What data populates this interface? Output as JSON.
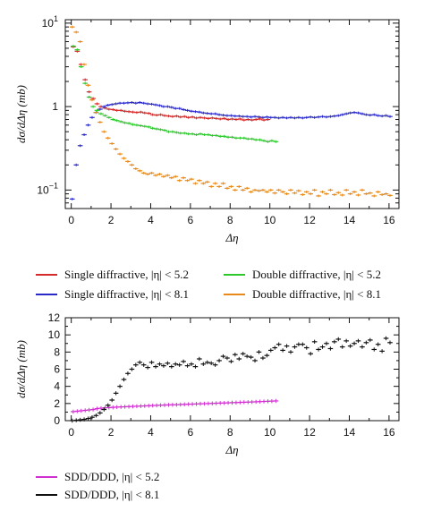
{
  "chart_data": [
    {
      "type": "scatter",
      "title": "",
      "xlabel": "Δη",
      "ylabel": "dσ/dΔη (mb)",
      "xlim": [
        -0.3,
        16.5
      ],
      "ylim": [
        0.06,
        11
      ],
      "y_scale": "log",
      "x_ticks": [
        0,
        2,
        4,
        6,
        8,
        10,
        12,
        14,
        16
      ],
      "y_ticks": [
        {
          "value": 0.1,
          "base": "10",
          "exp": "−1"
        },
        {
          "value": 1,
          "base": "1",
          "exp": ""
        },
        {
          "value": 10,
          "base": "10",
          "exp": "1"
        }
      ],
      "grid": false,
      "legend_position": "below",
      "series": [
        {
          "name": "Single diffractive, |η| < 5.2",
          "color": "#d42a2a",
          "x": [
            0.1,
            0.3,
            0.5,
            0.7,
            0.9,
            1.1,
            1.3,
            1.5,
            1.7,
            1.9,
            2.1,
            2.3,
            2.5,
            2.7,
            2.9,
            3.1,
            3.3,
            3.5,
            3.7,
            3.9,
            4.1,
            4.3,
            4.5,
            4.7,
            4.9,
            5.1,
            5.3,
            5.5,
            5.7,
            5.9,
            6.1,
            6.3,
            6.5,
            6.7,
            6.9,
            7.1,
            7.3,
            7.5,
            7.7,
            7.9,
            8.1,
            8.3,
            8.5,
            8.7,
            8.9,
            9.1,
            9.3,
            9.5,
            9.7,
            9.9
          ],
          "y": [
            5.2,
            4.6,
            3.2,
            2.1,
            1.5,
            1.25,
            1.08,
            1.0,
            0.96,
            0.93,
            0.92,
            0.9,
            0.9,
            0.88,
            0.87,
            0.86,
            0.85,
            0.86,
            0.84,
            0.83,
            0.8,
            0.79,
            0.8,
            0.78,
            0.77,
            0.76,
            0.77,
            0.75,
            0.76,
            0.74,
            0.75,
            0.73,
            0.74,
            0.73,
            0.72,
            0.73,
            0.72,
            0.71,
            0.72,
            0.7,
            0.71,
            0.7,
            0.71,
            0.69,
            0.7,
            0.69,
            0.7,
            0.71,
            0.69,
            0.7
          ]
        },
        {
          "name": "Single diffractive, |η| < 8.1",
          "color": "#2a2ac8",
          "x": [
            0.05,
            0.25,
            0.45,
            0.65,
            0.85,
            1.05,
            1.25,
            1.45,
            1.65,
            1.85,
            2.05,
            2.25,
            2.45,
            2.65,
            2.85,
            3.05,
            3.25,
            3.45,
            3.65,
            3.85,
            4.05,
            4.25,
            4.45,
            4.65,
            4.85,
            5.05,
            5.25,
            5.45,
            5.65,
            5.85,
            6.05,
            6.25,
            6.45,
            6.65,
            6.85,
            7.05,
            7.25,
            7.45,
            7.65,
            7.85,
            8.05,
            8.25,
            8.45,
            8.65,
            8.85,
            9.05,
            9.25,
            9.45,
            9.65,
            9.85,
            10.05,
            10.25,
            10.45,
            10.65,
            10.85,
            11.05,
            11.25,
            11.45,
            11.65,
            11.85,
            12.05,
            12.25,
            12.45,
            12.65,
            12.85,
            13.05,
            13.25,
            13.45,
            13.65,
            13.85,
            14.05,
            14.25,
            14.45,
            14.65,
            14.85,
            15.05,
            15.25,
            15.45,
            15.65,
            15.85,
            16.05
          ],
          "y": [
            0.078,
            0.2,
            0.34,
            0.46,
            0.6,
            0.74,
            0.85,
            0.93,
            1.0,
            1.04,
            1.06,
            1.08,
            1.1,
            1.1,
            1.11,
            1.12,
            1.1,
            1.12,
            1.1,
            1.08,
            1.07,
            1.05,
            1.03,
            1.0,
            1.0,
            0.98,
            0.95,
            0.95,
            0.92,
            0.9,
            0.88,
            0.87,
            0.86,
            0.84,
            0.83,
            0.82,
            0.82,
            0.8,
            0.79,
            0.78,
            0.78,
            0.77,
            0.77,
            0.76,
            0.76,
            0.75,
            0.76,
            0.75,
            0.74,
            0.75,
            0.74,
            0.74,
            0.73,
            0.74,
            0.73,
            0.74,
            0.73,
            0.74,
            0.73,
            0.74,
            0.75,
            0.74,
            0.75,
            0.76,
            0.75,
            0.76,
            0.77,
            0.78,
            0.8,
            0.82,
            0.84,
            0.85,
            0.84,
            0.82,
            0.8,
            0.79,
            0.8,
            0.78,
            0.77,
            0.78,
            0.76
          ]
        },
        {
          "name": "Double diffractive, |η| < 5.2",
          "color": "#2cc82c",
          "x": [
            0.1,
            0.3,
            0.5,
            0.7,
            0.9,
            1.1,
            1.3,
            1.5,
            1.7,
            1.9,
            2.1,
            2.3,
            2.5,
            2.7,
            2.9,
            3.1,
            3.3,
            3.5,
            3.7,
            3.9,
            4.1,
            4.3,
            4.5,
            4.7,
            4.9,
            5.1,
            5.3,
            5.5,
            5.7,
            5.9,
            6.1,
            6.3,
            6.5,
            6.7,
            6.9,
            7.1,
            7.3,
            7.5,
            7.7,
            7.9,
            8.1,
            8.3,
            8.5,
            8.7,
            8.9,
            9.1,
            9.3,
            9.5,
            9.7,
            9.9,
            10.1,
            10.3
          ],
          "y": [
            5.3,
            4.8,
            3.0,
            1.9,
            1.3,
            1.0,
            0.9,
            0.82,
            0.78,
            0.74,
            0.7,
            0.68,
            0.66,
            0.64,
            0.63,
            0.61,
            0.6,
            0.59,
            0.58,
            0.57,
            0.55,
            0.54,
            0.53,
            0.52,
            0.5,
            0.5,
            0.49,
            0.48,
            0.48,
            0.47,
            0.47,
            0.46,
            0.47,
            0.46,
            0.46,
            0.45,
            0.45,
            0.44,
            0.44,
            0.43,
            0.43,
            0.42,
            0.42,
            0.42,
            0.41,
            0.41,
            0.4,
            0.4,
            0.39,
            0.38,
            0.39,
            0.38
          ]
        },
        {
          "name": "Double diffractive, |η| < 8.1",
          "color": "#e88a1a",
          "x": [
            0.05,
            0.25,
            0.45,
            0.65,
            0.85,
            1.05,
            1.25,
            1.45,
            1.65,
            1.85,
            2.05,
            2.25,
            2.45,
            2.65,
            2.85,
            3.05,
            3.25,
            3.45,
            3.65,
            3.85,
            4.05,
            4.25,
            4.45,
            4.65,
            4.85,
            5.05,
            5.25,
            5.45,
            5.65,
            5.85,
            6.05,
            6.25,
            6.45,
            6.65,
            6.85,
            7.05,
            7.25,
            7.45,
            7.65,
            7.85,
            8.05,
            8.25,
            8.45,
            8.65,
            8.85,
            9.05,
            9.25,
            9.45,
            9.65,
            9.85,
            10.05,
            10.25,
            10.45,
            10.65,
            10.85,
            11.05,
            11.25,
            11.45,
            11.65,
            11.85,
            12.05,
            12.25,
            12.45,
            12.65,
            12.85,
            13.05,
            13.25,
            13.45,
            13.65,
            13.85,
            14.05,
            14.25,
            14.45,
            14.65,
            14.85,
            15.05,
            15.25,
            15.45,
            15.65,
            15.85,
            16.05
          ],
          "y": [
            9.0,
            7.8,
            6.0,
            3.2,
            1.8,
            1.2,
            0.85,
            0.65,
            0.5,
            0.42,
            0.36,
            0.31,
            0.27,
            0.24,
            0.22,
            0.2,
            0.18,
            0.17,
            0.16,
            0.155,
            0.16,
            0.15,
            0.155,
            0.145,
            0.15,
            0.14,
            0.145,
            0.13,
            0.14,
            0.13,
            0.135,
            0.12,
            0.13,
            0.12,
            0.125,
            0.11,
            0.12,
            0.11,
            0.12,
            0.105,
            0.11,
            0.1,
            0.11,
            0.1,
            0.105,
            0.095,
            0.1,
            0.098,
            0.1,
            0.095,
            0.1,
            0.092,
            0.1,
            0.095,
            0.09,
            0.1,
            0.092,
            0.098,
            0.088,
            0.095,
            0.09,
            0.1,
            0.085,
            0.095,
            0.09,
            0.1,
            0.088,
            0.093,
            0.087,
            0.1,
            0.09,
            0.095,
            0.087,
            0.1,
            0.09,
            0.092,
            0.085,
            0.095,
            0.088,
            0.09,
            0.086
          ]
        }
      ]
    },
    {
      "type": "scatter",
      "title": "",
      "xlabel": "Δη",
      "ylabel": "dσ/dΔη (mb)",
      "xlim": [
        -0.3,
        16.5
      ],
      "ylim": [
        0,
        12
      ],
      "y_scale": "linear",
      "x_ticks": [
        0,
        2,
        4,
        6,
        8,
        10,
        12,
        14,
        16
      ],
      "y_ticks": [
        0,
        2,
        4,
        6,
        8,
        10,
        12
      ],
      "grid": false,
      "legend_position": "below",
      "series": [
        {
          "name": "SDD/DDD, |η| < 5.2",
          "color": "#d02ed0",
          "x": [
            0.1,
            0.3,
            0.5,
            0.7,
            0.9,
            1.1,
            1.3,
            1.5,
            1.7,
            1.9,
            2.1,
            2.3,
            2.5,
            2.7,
            2.9,
            3.1,
            3.3,
            3.5,
            3.7,
            3.9,
            4.1,
            4.3,
            4.5,
            4.7,
            4.9,
            5.1,
            5.3,
            5.5,
            5.7,
            5.9,
            6.1,
            6.3,
            6.5,
            6.7,
            6.9,
            7.1,
            7.3,
            7.5,
            7.7,
            7.9,
            8.1,
            8.3,
            8.5,
            8.7,
            8.9,
            9.1,
            9.3,
            9.5,
            9.7,
            9.9,
            10.1,
            10.3
          ],
          "y": [
            1.05,
            1.1,
            1.15,
            1.2,
            1.25,
            1.3,
            1.4,
            1.45,
            1.5,
            1.52,
            1.55,
            1.58,
            1.6,
            1.62,
            1.64,
            1.66,
            1.68,
            1.7,
            1.72,
            1.74,
            1.76,
            1.78,
            1.8,
            1.82,
            1.84,
            1.85,
            1.86,
            1.88,
            1.9,
            1.92,
            1.93,
            1.95,
            1.97,
            1.98,
            2.0,
            2.01,
            2.03,
            2.05,
            2.06,
            2.08,
            2.1,
            2.11,
            2.13,
            2.15,
            2.16,
            2.18,
            2.2,
            2.22,
            2.24,
            2.26,
            2.28,
            2.3
          ]
        },
        {
          "name": "SDD/DDD, |η| < 8.1",
          "color": "#111111",
          "x": [
            0.05,
            0.25,
            0.45,
            0.65,
            0.85,
            1.05,
            1.25,
            1.45,
            1.65,
            1.85,
            2.05,
            2.25,
            2.45,
            2.65,
            2.85,
            3.05,
            3.25,
            3.45,
            3.65,
            3.85,
            4.05,
            4.25,
            4.45,
            4.65,
            4.85,
            5.05,
            5.25,
            5.45,
            5.65,
            5.85,
            6.05,
            6.25,
            6.45,
            6.65,
            6.85,
            7.05,
            7.25,
            7.45,
            7.65,
            7.85,
            8.05,
            8.25,
            8.45,
            8.65,
            8.85,
            9.05,
            9.25,
            9.45,
            9.65,
            9.85,
            10.05,
            10.25,
            10.45,
            10.65,
            10.85,
            11.05,
            11.25,
            11.45,
            11.65,
            11.85,
            12.05,
            12.25,
            12.45,
            12.65,
            12.85,
            13.05,
            13.25,
            13.45,
            13.65,
            13.85,
            14.05,
            14.25,
            14.45,
            14.65,
            14.85,
            15.05,
            15.25,
            15.45,
            15.65,
            15.85,
            16.05
          ],
          "y": [
            0.0,
            0.05,
            0.1,
            0.15,
            0.25,
            0.4,
            0.6,
            0.9,
            1.3,
            1.8,
            2.4,
            3.2,
            4.0,
            4.8,
            5.5,
            6.0,
            6.5,
            6.8,
            6.5,
            6.2,
            6.8,
            6.3,
            6.6,
            6.4,
            6.7,
            6.3,
            6.6,
            6.5,
            6.9,
            6.4,
            6.6,
            6.3,
            7.2,
            6.6,
            6.8,
            6.7,
            6.5,
            7.0,
            7.5,
            7.3,
            6.9,
            7.7,
            7.2,
            7.8,
            7.5,
            7.4,
            7.0,
            8.0,
            7.3,
            7.6,
            8.2,
            8.5,
            8.9,
            8.2,
            8.7,
            8.0,
            8.6,
            8.9,
            8.9,
            8.5,
            7.8,
            9.2,
            8.3,
            8.6,
            9.0,
            8.4,
            9.2,
            9.5,
            8.6,
            9.3,
            8.7,
            9.0,
            9.3,
            8.6,
            9.1,
            9.4,
            8.3,
            8.9,
            8.1,
            9.6,
            9.1
          ]
        }
      ]
    }
  ]
}
